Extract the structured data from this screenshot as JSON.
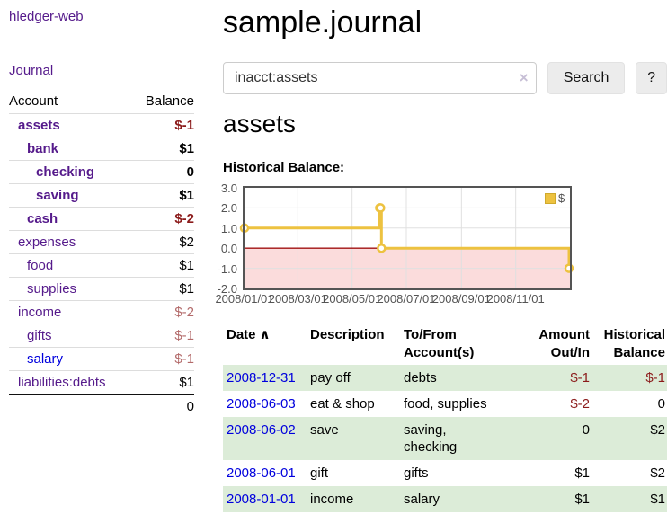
{
  "sidebar": {
    "brand": "hledger-web",
    "journal_label": "Journal",
    "accounts": {
      "header_account": "Account",
      "header_balance": "Balance",
      "rows": [
        {
          "name": "assets",
          "balance": "$-1",
          "indent": 1,
          "inacct": true,
          "negative": true
        },
        {
          "name": "bank",
          "balance": "$1",
          "indent": 2,
          "inacct": true,
          "negative": false
        },
        {
          "name": "checking",
          "balance": "0",
          "indent": 3,
          "inacct": true,
          "negative": false
        },
        {
          "name": "saving",
          "balance": "$1",
          "indent": 3,
          "inacct": true,
          "negative": false
        },
        {
          "name": "cash",
          "balance": "$-2",
          "indent": 2,
          "inacct": true,
          "negative": true
        },
        {
          "name": "expenses",
          "balance": "$2",
          "indent": 1,
          "inacct": false,
          "negative": false
        },
        {
          "name": "food",
          "balance": "$1",
          "indent": 2,
          "inacct": false,
          "negative": false
        },
        {
          "name": "supplies",
          "balance": "$1",
          "indent": 2,
          "inacct": false,
          "negative": false
        },
        {
          "name": "income",
          "balance": "$-2",
          "indent": 1,
          "inacct": false,
          "negative": true
        },
        {
          "name": "gifts",
          "balance": "$-1",
          "indent": 2,
          "inacct": false,
          "negative": true
        },
        {
          "name": "salary",
          "balance": "$-1",
          "indent": 2,
          "inacct": false,
          "negative": true,
          "unvisited": true
        },
        {
          "name": "liabilities:debts",
          "balance": "$1",
          "indent": 1,
          "inacct": false,
          "negative": false
        }
      ],
      "total": "0"
    }
  },
  "header": {
    "title": "sample.journal"
  },
  "search": {
    "query": "inacct:assets",
    "clear_icon": "×",
    "button_label": "Search",
    "help_label": "?"
  },
  "account_page": {
    "title": "assets",
    "chart_label": "Historical Balance:"
  },
  "chart_data": {
    "type": "line",
    "step": true,
    "series": [
      {
        "name": "$",
        "color": "#edc240",
        "points": [
          {
            "x": "2008-01-01",
            "y": 1
          },
          {
            "x": "2008-06-01",
            "y": 2
          },
          {
            "x": "2008-06-02",
            "y": 2
          },
          {
            "x": "2008-06-03",
            "y": 0
          },
          {
            "x": "2008-12-31",
            "y": -1
          }
        ]
      }
    ],
    "xrange": [
      "2008-01-01",
      "2009-01-01"
    ],
    "ylim": [
      -2,
      3
    ],
    "yticks": [
      {
        "v": 3,
        "label": "3.0"
      },
      {
        "v": 2,
        "label": "2.0"
      },
      {
        "v": 1,
        "label": "1.0"
      },
      {
        "v": 0,
        "label": "0.0"
      },
      {
        "v": -1,
        "label": "-1.0"
      },
      {
        "v": -2,
        "label": "-2.0"
      }
    ],
    "xticks": [
      {
        "x": "2008-01-01",
        "label": "2008/01/01"
      },
      {
        "x": "2008-03-01",
        "label": "2008/03/01"
      },
      {
        "x": "2008-05-01",
        "label": "2008/05/01"
      },
      {
        "x": "2008-07-01",
        "label": "2008/07/01"
      },
      {
        "x": "2008-09-01",
        "label": "2008/09/01"
      },
      {
        "x": "2008-11-01",
        "label": "2008/11/01"
      }
    ],
    "legend": {
      "label": "$",
      "position": "top-right"
    },
    "grid": true,
    "colors": {
      "grid_line": "#e0e0e0",
      "border": "#545454",
      "zero_line": "#a01010",
      "below_zero_fill": "#fbdcdc",
      "point_fill": "#ffffff"
    }
  },
  "register_table": {
    "headers": {
      "date": "Date",
      "sort_caret": "∧",
      "description": "Description",
      "account": "To/From Account(s)",
      "amount": "Amount Out/In",
      "balance": "Historical Balance"
    },
    "rows": [
      {
        "date": "2008-12-31",
        "description": "pay off",
        "account": "debts",
        "amount": "$-1",
        "balance": "$-1",
        "amount_negative": true,
        "balance_negative": true,
        "shaded": true
      },
      {
        "date": "2008-06-03",
        "description": "eat & shop",
        "account": "food, supplies",
        "amount": "$-2",
        "balance": "0",
        "amount_negative": true,
        "balance_negative": false,
        "shaded": false
      },
      {
        "date": "2008-06-02",
        "description": "save",
        "account": "saving,\nchecking",
        "amount": "0",
        "balance": "$2",
        "amount_negative": false,
        "balance_negative": false,
        "shaded": true
      },
      {
        "date": "2008-06-01",
        "description": "gift",
        "account": "gifts",
        "amount": "$1",
        "balance": "$2",
        "amount_negative": false,
        "balance_negative": false,
        "shaded": false
      },
      {
        "date": "2008-01-01",
        "description": "income",
        "account": "salary",
        "amount": "$1",
        "balance": "$1",
        "amount_negative": false,
        "balance_negative": false,
        "shaded": true
      }
    ]
  }
}
